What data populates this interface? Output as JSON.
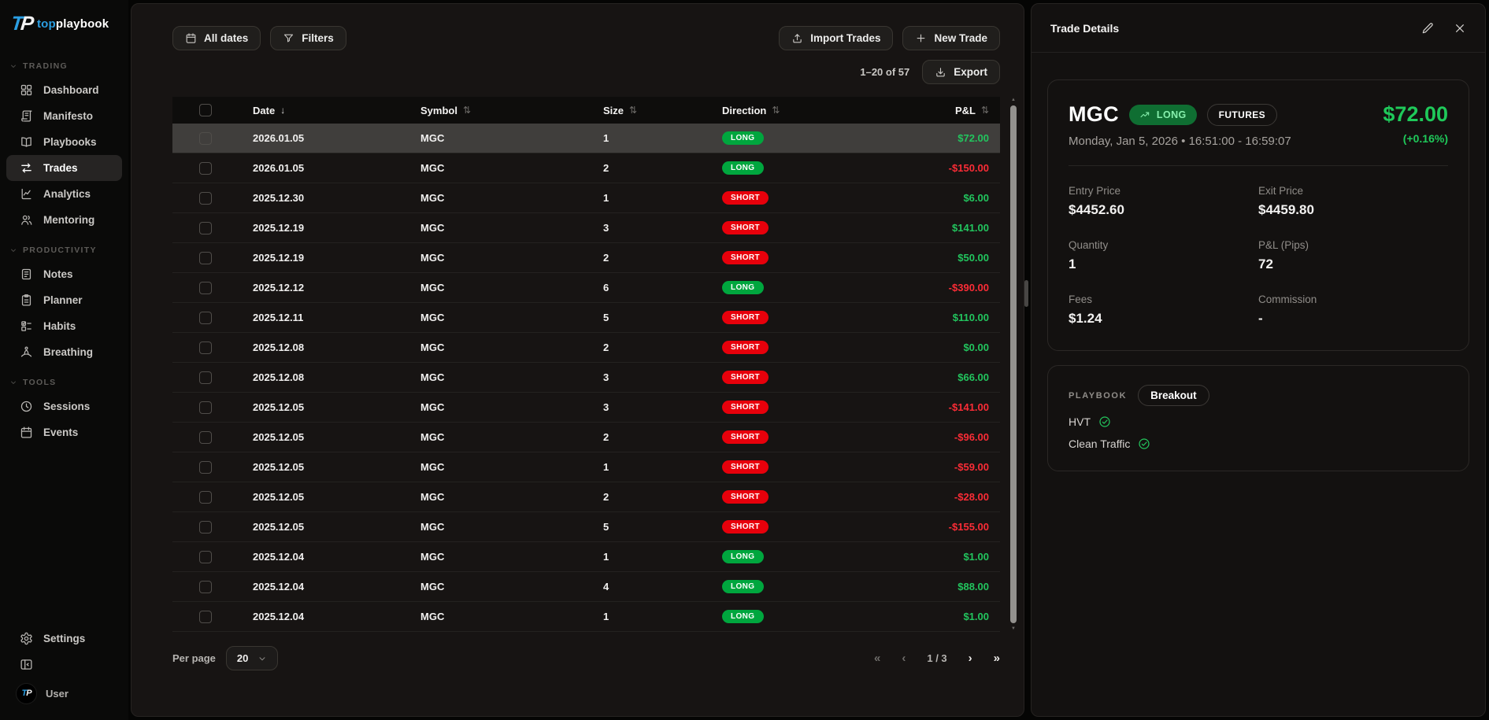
{
  "brand": {
    "mark_t": "T",
    "mark_p": "P",
    "name_top": "top",
    "name_rest": "playbook"
  },
  "colors": {
    "accent_blue": "#2b9fe3",
    "positive_green": "#22c55e",
    "negative_red": "#fb2c36",
    "long_badge_bg": "#00a63e",
    "short_badge_bg": "#e7000b"
  },
  "sidebar": {
    "sections": [
      {
        "label": "TRADING",
        "items": [
          {
            "label": "Dashboard",
            "icon": "dashboard"
          },
          {
            "label": "Manifesto",
            "icon": "manifesto"
          },
          {
            "label": "Playbooks",
            "icon": "playbooks"
          },
          {
            "label": "Trades",
            "icon": "trades",
            "active": true
          },
          {
            "label": "Analytics",
            "icon": "analytics"
          },
          {
            "label": "Mentoring",
            "icon": "mentoring"
          }
        ]
      },
      {
        "label": "PRODUCTIVITY",
        "items": [
          {
            "label": "Notes",
            "icon": "notes"
          },
          {
            "label": "Planner",
            "icon": "planner"
          },
          {
            "label": "Habits",
            "icon": "habits"
          },
          {
            "label": "Breathing",
            "icon": "breathing"
          }
        ]
      },
      {
        "label": "TOOLS",
        "items": [
          {
            "label": "Sessions",
            "icon": "sessions"
          },
          {
            "label": "Events",
            "icon": "events"
          }
        ]
      }
    ],
    "footer": {
      "settings_label": "Settings",
      "user_label": "User"
    }
  },
  "toolbar": {
    "all_dates_label": "All dates",
    "filters_label": "Filters",
    "import_trades_label": "Import Trades",
    "new_trade_label": "New Trade",
    "range_text": "1–20 of 57",
    "export_label": "Export"
  },
  "table": {
    "headers": {
      "date": "Date",
      "symbol": "Symbol",
      "size": "Size",
      "direction": "Direction",
      "pnl": "P&L"
    },
    "rows": [
      {
        "date": "2026.01.05",
        "symbol": "MGC",
        "size": "1",
        "direction": "LONG",
        "pnl": "$72.00",
        "positive": true,
        "selected": true
      },
      {
        "date": "2026.01.05",
        "symbol": "MGC",
        "size": "2",
        "direction": "LONG",
        "pnl": "-$150.00",
        "positive": false
      },
      {
        "date": "2025.12.30",
        "symbol": "MGC",
        "size": "1",
        "direction": "SHORT",
        "pnl": "$6.00",
        "positive": true
      },
      {
        "date": "2025.12.19",
        "symbol": "MGC",
        "size": "3",
        "direction": "SHORT",
        "pnl": "$141.00",
        "positive": true
      },
      {
        "date": "2025.12.19",
        "symbol": "MGC",
        "size": "2",
        "direction": "SHORT",
        "pnl": "$50.00",
        "positive": true
      },
      {
        "date": "2025.12.12",
        "symbol": "MGC",
        "size": "6",
        "direction": "LONG",
        "pnl": "-$390.00",
        "positive": false
      },
      {
        "date": "2025.12.11",
        "symbol": "MGC",
        "size": "5",
        "direction": "SHORT",
        "pnl": "$110.00",
        "positive": true
      },
      {
        "date": "2025.12.08",
        "symbol": "MGC",
        "size": "2",
        "direction": "SHORT",
        "pnl": "$0.00",
        "positive": true
      },
      {
        "date": "2025.12.08",
        "symbol": "MGC",
        "size": "3",
        "direction": "SHORT",
        "pnl": "$66.00",
        "positive": true
      },
      {
        "date": "2025.12.05",
        "symbol": "MGC",
        "size": "3",
        "direction": "SHORT",
        "pnl": "-$141.00",
        "positive": false
      },
      {
        "date": "2025.12.05",
        "symbol": "MGC",
        "size": "2",
        "direction": "SHORT",
        "pnl": "-$96.00",
        "positive": false
      },
      {
        "date": "2025.12.05",
        "symbol": "MGC",
        "size": "1",
        "direction": "SHORT",
        "pnl": "-$59.00",
        "positive": false
      },
      {
        "date": "2025.12.05",
        "symbol": "MGC",
        "size": "2",
        "direction": "SHORT",
        "pnl": "-$28.00",
        "positive": false
      },
      {
        "date": "2025.12.05",
        "symbol": "MGC",
        "size": "5",
        "direction": "SHORT",
        "pnl": "-$155.00",
        "positive": false
      },
      {
        "date": "2025.12.04",
        "symbol": "MGC",
        "size": "1",
        "direction": "LONG",
        "pnl": "$1.00",
        "positive": true
      },
      {
        "date": "2025.12.04",
        "symbol": "MGC",
        "size": "4",
        "direction": "LONG",
        "pnl": "$88.00",
        "positive": true
      },
      {
        "date": "2025.12.04",
        "symbol": "MGC",
        "size": "1",
        "direction": "LONG",
        "pnl": "$1.00",
        "positive": true
      }
    ]
  },
  "pagination": {
    "per_page_label": "Per page",
    "per_page_value": "20",
    "page_indicator": "1 / 3"
  },
  "details": {
    "title": "Trade Details",
    "symbol": "MGC",
    "direction_badge": "LONG",
    "type_badge": "FUTURES",
    "pnl": "$72.00",
    "pnl_pct": "(+0.16%)",
    "datetime": "Monday, Jan 5, 2026 • 16:51:00 - 16:59:07",
    "fields": [
      {
        "label": "Entry Price",
        "value": "$4452.60"
      },
      {
        "label": "Exit Price",
        "value": "$4459.80"
      },
      {
        "label": "Quantity",
        "value": "1"
      },
      {
        "label": "P&L (Pips)",
        "value": "72"
      },
      {
        "label": "Fees",
        "value": "$1.24"
      },
      {
        "label": "Commission",
        "value": "-"
      }
    ],
    "playbook_label": "PLAYBOOK",
    "playbook_badge": "Breakout",
    "checklist": [
      {
        "label": "HVT"
      },
      {
        "label": "Clean Traffic"
      }
    ]
  }
}
